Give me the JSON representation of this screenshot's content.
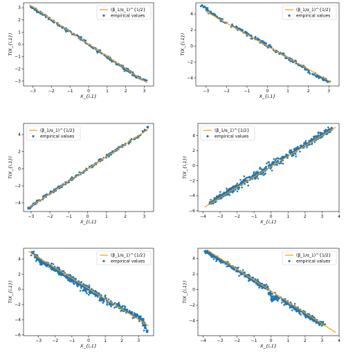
{
  "chart_data": [
    {
      "type": "scatter",
      "xlabel": "X_{i,1}",
      "ylabel": "T(X_{i,1})",
      "xlim": [
        -3.5,
        3.5
      ],
      "ylim": [
        -3.4,
        3.4
      ],
      "xticks": [
        -3,
        -2,
        -1,
        0,
        1,
        2,
        3
      ],
      "yticks": [
        -3,
        -2,
        -1,
        0,
        1,
        2,
        3
      ],
      "legend_position": "top-right",
      "series": [
        {
          "name": "(β_1/α_1)^{1/2}",
          "kind": "line",
          "color": "#ff9900",
          "x": [
            -3.2,
            3.15
          ],
          "y": [
            3.25,
            -3.15
          ]
        },
        {
          "name": "empirical values",
          "kind": "scatter",
          "color": "#1f77b4",
          "x": [
            -3.1,
            -2.9,
            -2.6,
            -2.3,
            -2.0,
            -1.7,
            -1.4,
            -1.1,
            -0.8,
            -0.5,
            -0.2,
            0.1,
            0.4,
            0.7,
            1.0,
            1.3,
            1.6,
            1.9,
            2.2,
            2.5,
            2.8,
            3.1
          ],
          "y": [
            3.1,
            2.85,
            2.55,
            2.3,
            1.98,
            1.7,
            1.42,
            1.1,
            0.82,
            0.55,
            0.22,
            -0.08,
            -0.38,
            -0.72,
            -1.02,
            -1.35,
            -1.6,
            -1.95,
            -2.2,
            -2.55,
            -2.8,
            -2.95
          ]
        }
      ]
    },
    {
      "type": "scatter",
      "xlabel": "X_{i,1}",
      "ylabel": "T(X_{i,1})",
      "xlim": [
        -3.5,
        3.5
      ],
      "ylim": [
        -5.0,
        5.4
      ],
      "xticks": [
        -3,
        -2,
        -1,
        0,
        1,
        2,
        3
      ],
      "yticks": [
        -4,
        -2,
        0,
        2,
        4
      ],
      "legend_position": "top-right",
      "series": [
        {
          "name": "(β_1/α_1)^{1/2}",
          "kind": "line",
          "color": "#ff9900",
          "x": [
            -3.0,
            3.1
          ],
          "y": [
            4.3,
            -4.5
          ]
        },
        {
          "name": "empirical values",
          "kind": "scatter",
          "color": "#1f77b4",
          "x": [
            -3.2,
            -2.9,
            -2.6,
            -2.3,
            -2.0,
            -1.7,
            -1.4,
            -1.1,
            -0.8,
            -0.5,
            -0.2,
            0.1,
            0.4,
            0.7,
            1.0,
            1.3,
            1.6,
            1.9,
            2.2,
            2.5,
            2.8,
            3.0
          ],
          "y": [
            5.1,
            4.4,
            3.85,
            3.3,
            2.9,
            2.5,
            2.15,
            1.7,
            1.3,
            0.85,
            0.4,
            -0.1,
            -0.6,
            -1.0,
            -1.5,
            -1.9,
            -2.4,
            -2.9,
            -3.5,
            -3.8,
            -4.2,
            -4.45
          ]
        }
      ]
    },
    {
      "type": "scatter",
      "xlabel": "X_{i,1}",
      "ylabel": "T(X_{i,1})",
      "xlim": [
        -3.4,
        3.5
      ],
      "ylim": [
        -5.0,
        5.3
      ],
      "xticks": [
        -3,
        -2,
        -1,
        0,
        1,
        2,
        3
      ],
      "yticks": [
        -4,
        -2,
        0,
        2,
        4
      ],
      "legend_position": "top-left",
      "series": [
        {
          "name": "(β_1/α_1)^{1/2}",
          "kind": "line",
          "color": "#ff9900",
          "x": [
            -3.1,
            3.2
          ],
          "y": [
            -4.5,
            4.6
          ]
        },
        {
          "name": "empirical values",
          "kind": "scatter",
          "color": "#1f77b4",
          "x": [
            -3.1,
            -2.9,
            -2.6,
            -2.3,
            -2.0,
            -1.7,
            -1.4,
            -1.1,
            -0.8,
            -0.5,
            -0.2,
            0.1,
            0.4,
            0.7,
            1.0,
            1.3,
            1.6,
            1.9,
            2.2,
            2.5,
            2.8,
            3.2
          ],
          "y": [
            -4.6,
            -4.2,
            -3.75,
            -3.3,
            -2.9,
            -2.45,
            -2.05,
            -1.6,
            -1.15,
            -0.72,
            -0.3,
            0.15,
            0.6,
            1.02,
            1.45,
            1.9,
            2.3,
            2.75,
            3.15,
            3.55,
            3.95,
            4.9
          ]
        }
      ]
    },
    {
      "type": "scatter",
      "xlabel": "X_{i,1}",
      "ylabel": "T(X_{i,1})",
      "xlim": [
        -4.3,
        4.0
      ],
      "ylim": [
        -6.1,
        5.6
      ],
      "xticks": [
        -4,
        -3,
        -2,
        -1,
        0,
        1,
        2,
        3,
        4
      ],
      "yticks": [
        -6,
        -4,
        -2,
        0,
        2,
        4
      ],
      "legend_position": "top-left",
      "series": [
        {
          "name": "(β_1/α_1)^{1/2}",
          "kind": "line",
          "color": "#ff9900",
          "x": [
            -3.9,
            3.8
          ],
          "y": [
            -5.5,
            5.1
          ]
        },
        {
          "name": "empirical values",
          "kind": "scatter",
          "color": "#1f77b4",
          "x": [
            -3.6,
            -3.3,
            -3.0,
            -2.7,
            -2.4,
            -2.1,
            -1.8,
            -1.5,
            -1.2,
            -0.9,
            -0.6,
            -0.3,
            0.0,
            0.3,
            0.6,
            0.9,
            1.2,
            1.5,
            1.8,
            2.1,
            2.4,
            2.7,
            3.0,
            3.3,
            3.6
          ],
          "y": [
            -5.0,
            -4.6,
            -4.1,
            -3.8,
            -3.3,
            -3.0,
            -2.5,
            -2.0,
            -1.7,
            -1.3,
            -0.9,
            -0.4,
            0.0,
            0.4,
            0.8,
            1.3,
            1.6,
            2.1,
            2.5,
            2.9,
            3.3,
            3.8,
            4.1,
            4.5,
            4.9
          ]
        }
      ]
    },
    {
      "type": "scatter",
      "xlabel": "X_{i,1}",
      "ylabel": "T(X_{i,1})",
      "xlim": [
        -3.9,
        3.9
      ],
      "ylim": [
        -6.1,
        5.4
      ],
      "xticks": [
        -3,
        -2,
        -1,
        0,
        1,
        2,
        3
      ],
      "yticks": [
        -6,
        -4,
        -2,
        0,
        2,
        4
      ],
      "legend_position": "top-right",
      "series": [
        {
          "name": "(β_1/α_1)^{1/2}",
          "kind": "line",
          "color": "#ff9900",
          "x": [
            -3.6,
            3.6
          ],
          "y": [
            5.0,
            -4.8
          ]
        },
        {
          "name": "empirical values",
          "kind": "scatter",
          "color": "#1f77b4",
          "x": [
            -3.4,
            -3.1,
            -2.8,
            -2.5,
            -2.2,
            -1.9,
            -1.6,
            -1.3,
            -1.0,
            -0.7,
            -0.4,
            -0.1,
            0.2,
            0.5,
            0.8,
            1.1,
            1.4,
            1.7,
            2.0,
            2.3,
            2.6,
            2.9,
            3.2,
            3.5
          ],
          "y": [
            4.9,
            4.1,
            3.6,
            3.3,
            2.9,
            2.5,
            2.1,
            1.6,
            1.3,
            0.8,
            0.5,
            0.0,
            -0.4,
            -0.8,
            -1.2,
            -1.5,
            -1.8,
            -2.1,
            -2.5,
            -2.9,
            -3.2,
            -3.5,
            -4.0,
            -5.6
          ]
        }
      ]
    },
    {
      "type": "scatter",
      "xlabel": "X_{i,1}",
      "ylabel": "T(X_{i,1})",
      "xlim": [
        -4.3,
        4.0
      ],
      "ylim": [
        -5.9,
        5.3
      ],
      "xticks": [
        -4,
        -3,
        -2,
        -1,
        0,
        1,
        2,
        3,
        4
      ],
      "yticks": [
        -4,
        -2,
        0,
        2,
        4
      ],
      "legend_position": "top-right",
      "series": [
        {
          "name": "(β_1/α_1)^{1/2}",
          "kind": "line",
          "color": "#ff9900",
          "x": [
            -3.7,
            3.8
          ],
          "y": [
            5.0,
            -5.5
          ]
        },
        {
          "name": "empirical values",
          "kind": "scatter",
          "color": "#1f77b4",
          "x": [
            -3.9,
            -3.5,
            -3.2,
            -2.9,
            -2.6,
            -2.3,
            -2.0,
            -1.7,
            -1.4,
            -1.1,
            -0.8,
            -0.5,
            -0.2,
            0.1,
            0.4,
            0.7,
            1.0,
            1.3,
            1.6,
            1.9,
            2.2,
            2.5,
            2.8,
            3.1
          ],
          "y": [
            4.9,
            4.4,
            4.0,
            3.7,
            3.3,
            2.9,
            2.5,
            2.1,
            1.8,
            1.3,
            0.9,
            0.4,
            0.1,
            -1.2,
            -1.0,
            -1.4,
            -1.8,
            -2.2,
            -2.6,
            -3.0,
            -3.4,
            -3.8,
            -4.2,
            -4.5
          ]
        }
      ]
    }
  ]
}
